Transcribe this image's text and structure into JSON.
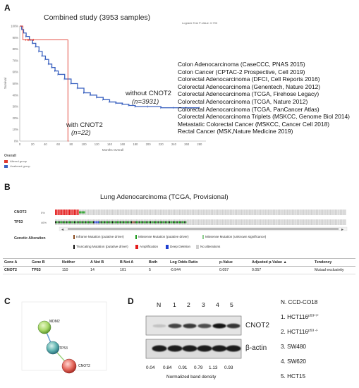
{
  "panels": {
    "a": "A",
    "b": "B",
    "c": "C",
    "d": "D"
  },
  "panel_a": {
    "title": "Combined study (3953 samples)",
    "logrank": "Logrank Test P-Value: 0.793",
    "ylabel": "Survival",
    "xlabel": "Months Overall",
    "y_ticks": [
      "100%",
      "90%",
      "80%",
      "70%",
      "60%",
      "50%",
      "40%",
      "30%",
      "20%",
      "10%",
      "0%"
    ],
    "x_ticks": [
      "0",
      "20",
      "40",
      "60",
      "80",
      "100",
      "120",
      "140",
      "160",
      "180",
      "200",
      "220",
      "240",
      "260",
      "280"
    ],
    "legend_title": "Overall",
    "legend_items": [
      {
        "label": "Altered group",
        "color": "#e03a2e"
      },
      {
        "label": "Unaltered group",
        "color": "#3b62c0"
      }
    ],
    "annot_without": "without CNOT2",
    "annot_without_n": "(n=3931)",
    "annot_with": "with CNOT2",
    "annot_with_n": "(n=22)",
    "studies": [
      "Colon Adenocarcinoma (CaseCCC, PNAS 2015)",
      "Colon Cancer (CPTAC-2 Prospective, Cell 2019)",
      "Colorectal Adenocarcinoma (DFCI, Cell Reports 2016)",
      "Colorectal Adenocarcinoma (Genentech, Nature 2012)",
      "Colorectal Adenocarcinoma (TCGA, Firehose Legacy)",
      "Colorectal Adenocarcinoma (TCGA, Nature 2012)",
      "Colorectal Adenocarcinoma (TCGA, PanCancer Atlas)",
      "Colorectal Adenocarcinoma Triplets (MSKCC, Genome Biol 2014)",
      "Metastatic Colorectal Cancer (MSKCC, Cancer Cell 2018)",
      "Rectal Cancer (MSK,Nature Medicine 2019)"
    ]
  },
  "chart_data": {
    "type": "line",
    "xlabel": "Months Overall",
    "ylabel": "Survival",
    "xlim": [
      0,
      290
    ],
    "ylim": [
      0,
      100
    ],
    "series": [
      {
        "name": "Unaltered group",
        "color": "#3b62c0",
        "x": [
          0,
          3,
          6,
          10,
          15,
          20,
          25,
          30,
          35,
          40,
          45,
          50,
          55,
          60,
          70,
          80,
          90,
          100,
          110,
          120,
          130,
          140,
          150,
          160,
          170,
          180,
          200,
          220,
          240,
          260,
          280
        ],
        "y": [
          100,
          97,
          94,
          91,
          88,
          85,
          82,
          78,
          74,
          71,
          67,
          64,
          61,
          58,
          54,
          50,
          46,
          42,
          40,
          38,
          36,
          34,
          33,
          32,
          31,
          30,
          30,
          29,
          29,
          29,
          29
        ]
      },
      {
        "name": "Altered group",
        "color": "#e03a2e",
        "x": [
          0,
          4,
          5,
          75,
          75,
          76
        ],
        "y": [
          100,
          100,
          88,
          88,
          0,
          0
        ]
      }
    ]
  },
  "panel_b": {
    "title": "Lung Adenocarcinoma (TCGA, Provisional)",
    "genes": [
      {
        "name": "CNOT2",
        "pct": "5%"
      },
      {
        "name": "TP53",
        "pct": "46%"
      }
    ],
    "legend_title": "Genetic Alteration",
    "legend": [
      "Inframe Mutation (putative driver)",
      "Missense Mutation (putative driver)",
      "Missense Mutation (unknown significance)",
      "Truncating Mutation (putative driver)",
      "Amplification",
      "Deep Deletion",
      "No alterations"
    ],
    "table_headers": [
      "Gene A",
      "Gene B",
      "Neither",
      "A Not B",
      "B Not A",
      "Both",
      "Log Odds Ratio",
      "p-Value",
      "Adjusted p-Value ▲",
      "Tendency"
    ],
    "table_row": [
      "CNOT2",
      "TP53",
      "110",
      "14",
      "101",
      "5",
      "-0.944",
      "0.057",
      "0.057",
      "Mutual exclusivity"
    ]
  },
  "panel_c": {
    "nodes": [
      "MDM2",
      "TP53",
      "CNOT2"
    ]
  },
  "panel_d": {
    "lanes": [
      "N",
      "1",
      "2",
      "3",
      "4",
      "5"
    ],
    "blot_labels": [
      "CNOT2",
      "β-actin"
    ],
    "density": [
      "0.04",
      "0.84",
      "0.91",
      "0.79",
      "1.13",
      "0.93"
    ],
    "density_caption": "Normalized band density",
    "cell_lines": [
      {
        "text": "N. CCD-CO18",
        "sup": ""
      },
      {
        "text": "1. HCT116",
        "sup": "p53+/+"
      },
      {
        "text": "2. HCT116",
        "sup": "p53 -/-"
      },
      {
        "text": "3. SW480",
        "sup": ""
      },
      {
        "text": "4. SW620",
        "sup": ""
      },
      {
        "text": "5. HCT15",
        "sup": ""
      }
    ]
  }
}
